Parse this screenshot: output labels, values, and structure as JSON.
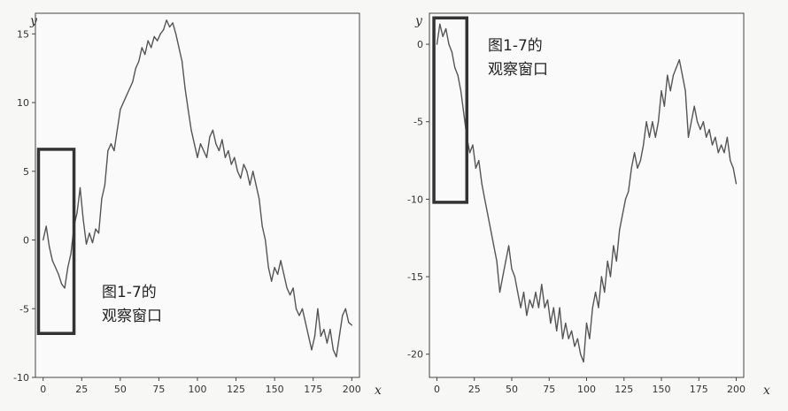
{
  "chart_data": [
    {
      "type": "line",
      "xlabel": "x",
      "ylabel": "y",
      "xlim": [
        -5,
        205
      ],
      "ylim": [
        -10,
        16.5
      ],
      "x_ticks": [
        0,
        25,
        50,
        75,
        100,
        125,
        150,
        175,
        200
      ],
      "y_ticks": [
        -10,
        -5,
        0,
        5,
        10,
        15
      ],
      "grid": false,
      "annotation_text": [
        "图1-7的",
        "观察窗口"
      ],
      "observation_window": {
        "x": [
          -3,
          20
        ],
        "y": [
          -6.8,
          6.6
        ]
      },
      "series": [
        {
          "color": "#555555",
          "points": [
            [
              0,
              0
            ],
            [
              2,
              1
            ],
            [
              4,
              -0.5
            ],
            [
              6,
              -1.5
            ],
            [
              8,
              -2
            ],
            [
              10,
              -2.5
            ],
            [
              12,
              -3.2
            ],
            [
              14,
              -3.5
            ],
            [
              16,
              -2
            ],
            [
              18,
              -1
            ],
            [
              20,
              1
            ],
            [
              22,
              2
            ],
            [
              24,
              3.8
            ],
            [
              26,
              1.5
            ],
            [
              28,
              -0.3
            ],
            [
              30,
              0.5
            ],
            [
              32,
              -0.2
            ],
            [
              34,
              0.8
            ],
            [
              36,
              0.5
            ],
            [
              38,
              3
            ],
            [
              40,
              4
            ],
            [
              42,
              6.5
            ],
            [
              44,
              7
            ],
            [
              46,
              6.5
            ],
            [
              48,
              8
            ],
            [
              50,
              9.5
            ],
            [
              52,
              10
            ],
            [
              54,
              10.5
            ],
            [
              56,
              11
            ],
            [
              58,
              11.5
            ],
            [
              60,
              12.5
            ],
            [
              62,
              13
            ],
            [
              64,
              14
            ],
            [
              66,
              13.5
            ],
            [
              68,
              14.5
            ],
            [
              70,
              14
            ],
            [
              72,
              14.8
            ],
            [
              74,
              14.5
            ],
            [
              76,
              15
            ],
            [
              78,
              15.3
            ],
            [
              80,
              16
            ],
            [
              82,
              15.5
            ],
            [
              84,
              15.8
            ],
            [
              86,
              15
            ],
            [
              88,
              14
            ],
            [
              90,
              13
            ],
            [
              92,
              11
            ],
            [
              94,
              9.5
            ],
            [
              96,
              8
            ],
            [
              98,
              7
            ],
            [
              100,
              6
            ],
            [
              102,
              7
            ],
            [
              104,
              6.5
            ],
            [
              106,
              6
            ],
            [
              108,
              7.5
            ],
            [
              110,
              8
            ],
            [
              112,
              7
            ],
            [
              114,
              6.5
            ],
            [
              116,
              7.3
            ],
            [
              118,
              6
            ],
            [
              120,
              6.5
            ],
            [
              122,
              5.5
            ],
            [
              124,
              6
            ],
            [
              126,
              5
            ],
            [
              128,
              4.5
            ],
            [
              130,
              5.5
            ],
            [
              132,
              5
            ],
            [
              134,
              4
            ],
            [
              136,
              5
            ],
            [
              138,
              4
            ],
            [
              140,
              3
            ],
            [
              142,
              1
            ],
            [
              144,
              0
            ],
            [
              146,
              -2
            ],
            [
              148,
              -3
            ],
            [
              150,
              -2
            ],
            [
              152,
              -2.5
            ],
            [
              154,
              -1.5
            ],
            [
              156,
              -2.5
            ],
            [
              158,
              -3.5
            ],
            [
              160,
              -4
            ],
            [
              162,
              -3.5
            ],
            [
              164,
              -5
            ],
            [
              166,
              -5.5
            ],
            [
              168,
              -5
            ],
            [
              170,
              -6
            ],
            [
              172,
              -7
            ],
            [
              174,
              -8
            ],
            [
              176,
              -7
            ],
            [
              178,
              -5
            ],
            [
              180,
              -7
            ],
            [
              182,
              -6.5
            ],
            [
              184,
              -7.5
            ],
            [
              186,
              -6.5
            ],
            [
              188,
              -8
            ],
            [
              190,
              -8.5
            ],
            [
              192,
              -7
            ],
            [
              194,
              -5.5
            ],
            [
              196,
              -5
            ],
            [
              198,
              -6
            ],
            [
              200,
              -6.2
            ]
          ]
        }
      ]
    },
    {
      "type": "line",
      "xlabel": "x",
      "ylabel": "y",
      "xlim": [
        -5,
        205
      ],
      "ylim": [
        -21.5,
        2
      ],
      "x_ticks": [
        0,
        25,
        50,
        75,
        100,
        125,
        150,
        175,
        200
      ],
      "y_ticks": [
        -20,
        -15,
        -10,
        -5,
        0
      ],
      "grid": false,
      "annotation_text": [
        "图1-7的",
        "观察窗口"
      ],
      "observation_window": {
        "x": [
          -2,
          20
        ],
        "y": [
          -10.2,
          1.7
        ]
      },
      "series": [
        {
          "color": "#555555",
          "points": [
            [
              0,
              0
            ],
            [
              2,
              1.3
            ],
            [
              4,
              0.5
            ],
            [
              6,
              1
            ],
            [
              8,
              0
            ],
            [
              10,
              -0.5
            ],
            [
              12,
              -1.5
            ],
            [
              14,
              -2
            ],
            [
              16,
              -3
            ],
            [
              18,
              -4.5
            ],
            [
              20,
              -6
            ],
            [
              22,
              -7
            ],
            [
              24,
              -6.5
            ],
            [
              26,
              -8
            ],
            [
              28,
              -7.5
            ],
            [
              30,
              -9
            ],
            [
              32,
              -10
            ],
            [
              34,
              -11
            ],
            [
              36,
              -12
            ],
            [
              38,
              -13
            ],
            [
              40,
              -14
            ],
            [
              42,
              -16
            ],
            [
              44,
              -15
            ],
            [
              46,
              -14
            ],
            [
              48,
              -13
            ],
            [
              50,
              -14.5
            ],
            [
              52,
              -15
            ],
            [
              54,
              -16
            ],
            [
              56,
              -17
            ],
            [
              58,
              -16
            ],
            [
              60,
              -17.5
            ],
            [
              62,
              -16.5
            ],
            [
              64,
              -17
            ],
            [
              66,
              -16
            ],
            [
              68,
              -17
            ],
            [
              70,
              -15.5
            ],
            [
              72,
              -17
            ],
            [
              74,
              -16.5
            ],
            [
              76,
              -18
            ],
            [
              78,
              -17
            ],
            [
              80,
              -18.5
            ],
            [
              82,
              -17
            ],
            [
              84,
              -19
            ],
            [
              86,
              -18
            ],
            [
              88,
              -19
            ],
            [
              90,
              -18.5
            ],
            [
              92,
              -19.5
            ],
            [
              94,
              -19
            ],
            [
              96,
              -20
            ],
            [
              98,
              -20.5
            ],
            [
              100,
              -18
            ],
            [
              102,
              -19
            ],
            [
              104,
              -17
            ],
            [
              106,
              -16
            ],
            [
              108,
              -17
            ],
            [
              110,
              -15
            ],
            [
              112,
              -16
            ],
            [
              114,
              -14
            ],
            [
              116,
              -15
            ],
            [
              118,
              -13
            ],
            [
              120,
              -14
            ],
            [
              122,
              -12
            ],
            [
              124,
              -11
            ],
            [
              126,
              -10
            ],
            [
              128,
              -9.5
            ],
            [
              130,
              -8
            ],
            [
              132,
              -7
            ],
            [
              134,
              -8
            ],
            [
              136,
              -7.5
            ],
            [
              138,
              -6.5
            ],
            [
              140,
              -5
            ],
            [
              142,
              -6
            ],
            [
              144,
              -5
            ],
            [
              146,
              -6
            ],
            [
              148,
              -5
            ],
            [
              150,
              -3
            ],
            [
              152,
              -4
            ],
            [
              154,
              -2
            ],
            [
              156,
              -3
            ],
            [
              158,
              -2
            ],
            [
              160,
              -1.5
            ],
            [
              162,
              -1
            ],
            [
              164,
              -2
            ],
            [
              166,
              -3
            ],
            [
              168,
              -6
            ],
            [
              170,
              -5
            ],
            [
              172,
              -4
            ],
            [
              174,
              -5
            ],
            [
              176,
              -5.5
            ],
            [
              178,
              -5
            ],
            [
              180,
              -6
            ],
            [
              182,
              -5.5
            ],
            [
              184,
              -6.5
            ],
            [
              186,
              -6
            ],
            [
              188,
              -7
            ],
            [
              190,
              -6.5
            ],
            [
              192,
              -7
            ],
            [
              194,
              -6
            ],
            [
              196,
              -7.5
            ],
            [
              198,
              -8
            ],
            [
              200,
              -9
            ]
          ]
        }
      ]
    }
  ]
}
